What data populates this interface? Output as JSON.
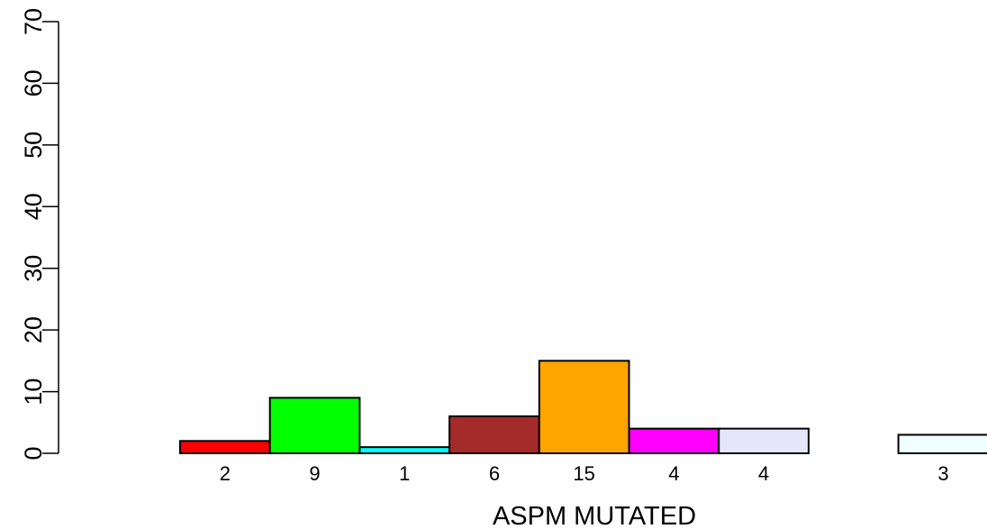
{
  "chart_data": {
    "type": "bar",
    "title": "",
    "xlabel": "ASPM MUTATED",
    "ylabel": "",
    "ylim": [
      0,
      70
    ],
    "yticks": [
      0,
      10,
      20,
      30,
      40,
      50,
      60,
      70
    ],
    "grid": false,
    "legend": "none",
    "bars": [
      {
        "value": 2,
        "label": "2",
        "color": "#ff0000"
      },
      {
        "value": 9,
        "label": "9",
        "color": "#00ff00"
      },
      {
        "value": 1,
        "label": "1",
        "color": "#00ffff"
      },
      {
        "value": 6,
        "label": "6",
        "color": "#a52a2a"
      },
      {
        "value": 15,
        "label": "15",
        "color": "#ffa500"
      },
      {
        "value": 4,
        "label": "4",
        "color": "#ff00ff"
      },
      {
        "value": 4,
        "label": "4",
        "color": "#e6e6fa"
      },
      {
        "value": 0,
        "label": "",
        "color": "#ffffff"
      },
      {
        "value": 3,
        "label": "3",
        "color": "#f0ffff"
      }
    ]
  }
}
